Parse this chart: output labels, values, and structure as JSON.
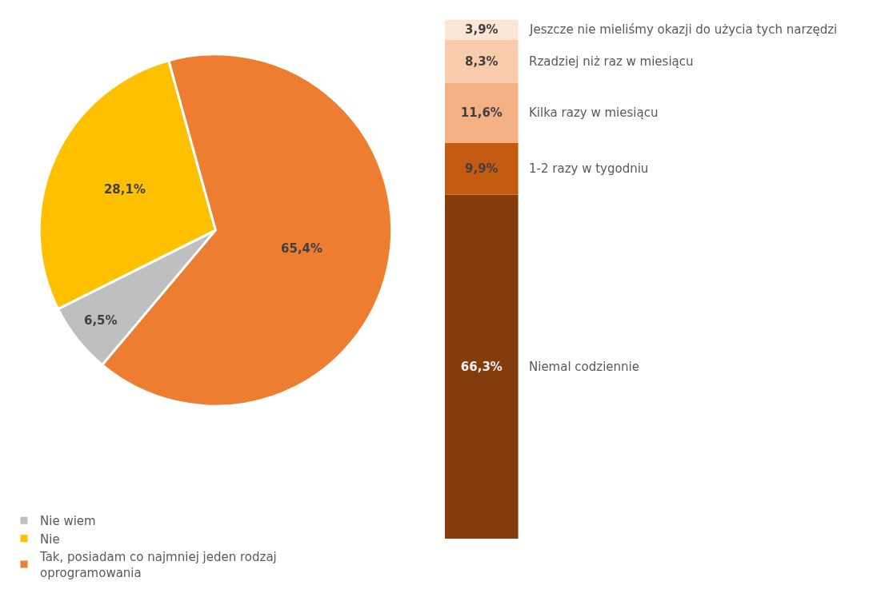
{
  "chart_data": [
    {
      "type": "pie",
      "categories": [
        "Nie wiem",
        "Nie",
        "Tak, posiadam co najmniej jeden rodzaj oprogramowania"
      ],
      "values": [
        6.5,
        28.1,
        65.4
      ],
      "colors": [
        "#bfbfbf",
        "#ffc000",
        "#ed7d31"
      ],
      "value_labels": [
        "6,5%",
        "28,1%",
        "65,4%"
      ],
      "legend": "bottom left"
    },
    {
      "type": "bar",
      "stacked": true,
      "tick_labels": false,
      "legend": false,
      "categories": [
        null
      ],
      "series": [
        {
          "name": "Niemal codziennie",
          "color": "#843c0c",
          "values": [
            66.3
          ],
          "value_labels": [
            "66,3%"
          ]
        },
        {
          "name": "1-2 razy w tygodniu",
          "color": "#c55a11",
          "values": [
            9.9
          ],
          "value_labels": [
            "9,9%"
          ]
        },
        {
          "name": "Kilka razy w miesiącu",
          "color": "#f4b183",
          "values": [
            11.6
          ],
          "value_labels": [
            "11,6%"
          ]
        },
        {
          "name": "Rzadziej niż raz w miesiącu",
          "color": "#f8cbad",
          "values": [
            8.3
          ],
          "value_labels": [
            "8,3%"
          ]
        },
        {
          "name": "Jeszcze nie mieliśmy okazji do użycia tych narzędzi",
          "color": "#fbe5d6",
          "values": [
            3.9
          ],
          "value_labels": [
            "3,9%"
          ]
        }
      ]
    }
  ]
}
